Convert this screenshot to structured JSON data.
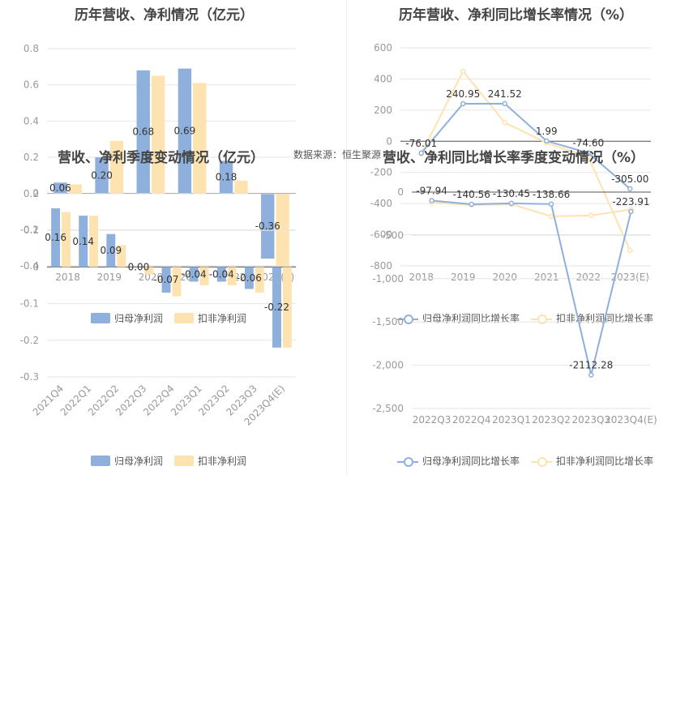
{
  "source_label": "数据来源：恒生聚源",
  "colors": {
    "series1": "#8fb0dc",
    "series2": "#fde3b0",
    "grid": "#e6e6e6",
    "axis": "#555555",
    "tick": "#999999",
    "label": "#333333"
  },
  "chart_data": [
    {
      "id": "annual-profit",
      "type": "bar",
      "title": "历年营收、净利情况（亿元）",
      "categories": [
        "2018",
        "2019",
        "2020",
        "2021",
        "2022",
        "2023(E)"
      ],
      "series": [
        {
          "name": "归母净利润",
          "values": [
            0.06,
            0.2,
            0.68,
            0.69,
            0.18,
            -0.36
          ],
          "labels": [
            "0.06",
            "0.20",
            "0.68",
            "0.69",
            "0.18",
            "-0.36"
          ]
        },
        {
          "name": "扣非净利润",
          "values": [
            0.05,
            0.29,
            0.65,
            0.61,
            0.07,
            -0.41
          ]
        }
      ],
      "yticks": [
        "0.8",
        "0.6",
        "0.4",
        "0.2",
        "0",
        "-0.2",
        "-0.4"
      ],
      "ylim": [
        -0.4,
        0.8
      ]
    },
    {
      "id": "annual-growth",
      "type": "line",
      "title": "历年营收、净利同比增长率情况（%）",
      "categories": [
        "2018",
        "2019",
        "2020",
        "2021",
        "2022",
        "2023(E)"
      ],
      "series": [
        {
          "name": "归母净利润同比增长率",
          "values": [
            -76.01,
            240.95,
            241.52,
            1.99,
            -74.6,
            -305.0
          ],
          "labels": [
            "-76.01",
            "240.95",
            "241.52",
            "1.99",
            "-74.60",
            "-305.00"
          ]
        },
        {
          "name": "扣非净利润同比增长率",
          "values": [
            -80,
            450,
            120,
            -10,
            -100,
            -700
          ]
        }
      ],
      "yticks": [
        "600",
        "400",
        "200",
        "0",
        "-200",
        "-400",
        "-600",
        "-800"
      ],
      "ylim": [
        -800,
        600
      ]
    },
    {
      "id": "quarterly-profit",
      "type": "bar",
      "title": "营收、净利季度变动情况（亿元）",
      "categories": [
        "2021Q4",
        "2022Q1",
        "2022Q2",
        "2022Q3",
        "2022Q4",
        "2023Q1",
        "2023Q2",
        "2023Q3",
        "2023Q4(E)"
      ],
      "series": [
        {
          "name": "归母净利润",
          "values": [
            0.16,
            0.14,
            0.09,
            0.0,
            -0.07,
            -0.04,
            -0.04,
            -0.06,
            -0.22
          ],
          "labels": [
            "0.16",
            "0.14",
            "0.09",
            "0.00",
            "-0.07",
            "-0.04",
            "-0.04",
            "-0.06",
            "-0.22"
          ]
        },
        {
          "name": "扣非净利润",
          "values": [
            0.15,
            0.14,
            0.06,
            -0.02,
            -0.08,
            -0.05,
            -0.05,
            -0.07,
            -0.22
          ]
        }
      ],
      "yticks": [
        "0.2",
        "0.1",
        "0",
        "-0.1",
        "-0.2",
        "-0.3"
      ],
      "ylim": [
        -0.3,
        0.2
      ]
    },
    {
      "id": "quarterly-growth",
      "type": "line",
      "title": "营收、净利同比增长率季度变动情况（%）",
      "categories": [
        "2022Q3",
        "2022Q4",
        "2023Q1",
        "2023Q2",
        "2023Q3",
        "2023Q4(E)"
      ],
      "series": [
        {
          "name": "归母净利润同比增长率",
          "values": [
            -97.94,
            -140.56,
            -130.45,
            -138.66,
            -2112.28,
            -223.91
          ],
          "labels": [
            "-97.94",
            "-140.56",
            "-130.45",
            "-138.66",
            "-2112.28",
            "-223.91"
          ]
        },
        {
          "name": "扣非净利润同比增长率",
          "values": [
            -120,
            -150,
            -140,
            -280,
            -270,
            -200
          ]
        }
      ],
      "yticks": [
        "0",
        "-500",
        "-1,000",
        "-1,500",
        "-2,000",
        "-2,500"
      ],
      "ylim": [
        -2500,
        0
      ]
    }
  ]
}
